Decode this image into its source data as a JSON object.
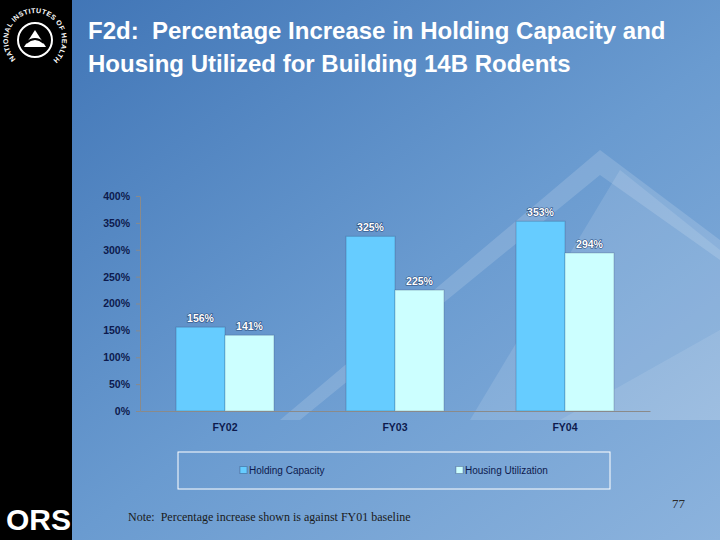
{
  "chart_data": {
    "type": "bar",
    "title": "F2d:  Percentage Increase in Holding Capacity and Housing Utilized for Building 14B Rodents",
    "categories": [
      "FY02",
      "FY03",
      "FY04"
    ],
    "series": [
      {
        "name": "Holding Capacity",
        "color": "#66ccff",
        "values": [
          156,
          325,
          353
        ],
        "value_labels": [
          "156%",
          "325%",
          "353%"
        ]
      },
      {
        "name": "Housing Utilization",
        "color": "#ccffff",
        "values": [
          141,
          225,
          294
        ],
        "value_labels": [
          "141%",
          "225%",
          "294%"
        ]
      }
    ],
    "ylim": [
      0,
      400
    ],
    "yticks": [
      {
        "value": 0,
        "label": "0%"
      },
      {
        "value": 50,
        "label": "50%"
      },
      {
        "value": 100,
        "label": "100%"
      },
      {
        "value": 150,
        "label": "150%"
      },
      {
        "value": 200,
        "label": "200%"
      },
      {
        "value": 250,
        "label": "250%"
      },
      {
        "value": 300,
        "label": "300%"
      },
      {
        "value": 350,
        "label": "350%"
      },
      {
        "value": 400,
        "label": "400%"
      }
    ],
    "grid": false,
    "legend": "bottom",
    "data_labels": true,
    "annotations": [
      "Note:  Percentage increase shown is against FY01 baseline",
      "77",
      "ORS",
      "NATIONAL INSTITUTES OF HEALTH"
    ]
  }
}
